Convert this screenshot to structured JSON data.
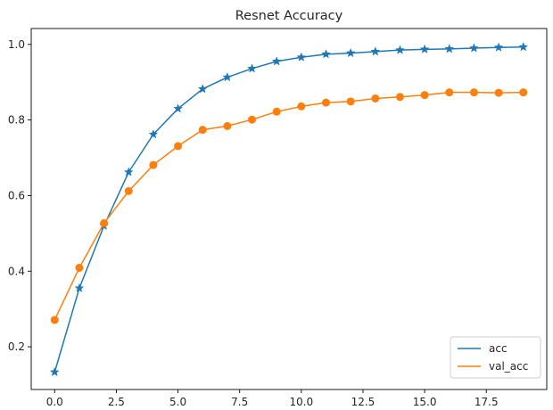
{
  "chart_data": {
    "type": "line",
    "title": "Resnet Accuracy",
    "xlabel": "",
    "ylabel": "",
    "xlim": [
      -0.95,
      19.95
    ],
    "ylim": [
      0.087,
      1.042
    ],
    "xticks": [
      0.0,
      2.5,
      5.0,
      7.5,
      10.0,
      12.5,
      15.0,
      17.5
    ],
    "xtick_labels": [
      "0.0",
      "2.5",
      "5.0",
      "7.5",
      "10.0",
      "12.5",
      "15.0",
      "17.5"
    ],
    "yticks": [
      0.2,
      0.4,
      0.6,
      0.8,
      1.0
    ],
    "ytick_labels": [
      "0.2",
      "0.4",
      "0.6",
      "0.8",
      "1.0"
    ],
    "grid": false,
    "legend_position": "lower-right",
    "x": [
      0,
      1,
      2,
      3,
      4,
      5,
      6,
      7,
      8,
      9,
      10,
      11,
      12,
      13,
      14,
      15,
      16,
      17,
      18,
      19
    ],
    "series": [
      {
        "name": "acc",
        "color": "#1f77b4",
        "marker": "star",
        "values": [
          0.133,
          0.355,
          0.52,
          0.662,
          0.762,
          0.83,
          0.882,
          0.913,
          0.936,
          0.955,
          0.966,
          0.974,
          0.977,
          0.981,
          0.985,
          0.987,
          0.988,
          0.99,
          0.992,
          0.993
        ]
      },
      {
        "name": "val_acc",
        "color": "#ff7f0e",
        "marker": "circle",
        "values": [
          0.271,
          0.409,
          0.527,
          0.612,
          0.681,
          0.731,
          0.774,
          0.784,
          0.801,
          0.822,
          0.836,
          0.846,
          0.849,
          0.857,
          0.861,
          0.866,
          0.873,
          0.873,
          0.872,
          0.873
        ]
      }
    ]
  }
}
